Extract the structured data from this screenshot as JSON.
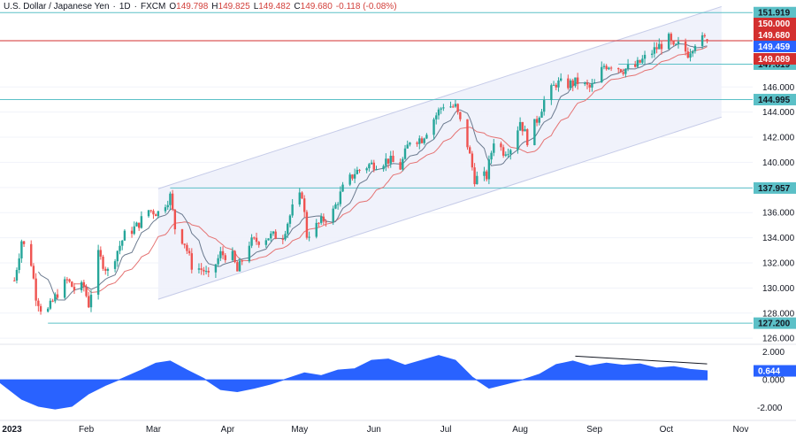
{
  "header": {
    "symbol": "U.S. Dollar / Japanese Yen",
    "interval": "1D",
    "exchange": "FXCM",
    "o_label": "O",
    "o_value": "149.798",
    "h_label": "H",
    "h_value": "149.825",
    "l_label": "L",
    "l_value": "149.482",
    "c_label": "C",
    "c_value": "149.680",
    "change": "-0.118 (-0.08%)"
  },
  "colors": {
    "up": "#26a69a",
    "down": "#ef5350",
    "ma_fast": "#6b7a8f",
    "ma_slow": "#e57373",
    "level": "#5bc0c7",
    "resistance": "#d32f2f",
    "oscillator": "#2962ff",
    "price_badge": "#d32f2f",
    "ma_badge": "#2962ff",
    "channel_fill": "#eef1fb"
  },
  "chart_data": [
    {
      "type": "candlestick",
      "title": "U.S. Dollar / Japanese Yen, 1D, FXCM",
      "x_ticks": [
        "2023",
        "Feb",
        "Mar",
        "Apr",
        "May",
        "Jun",
        "Jul",
        "Aug",
        "Sep",
        "Oct",
        "Nov"
      ],
      "y_ticks": [
        "126.000",
        "128.000",
        "130.000",
        "132.000",
        "134.000",
        "136.000",
        "138.000",
        "140.000",
        "142.000",
        "144.000",
        "146.000"
      ],
      "ylim": [
        125.8,
        152.5
      ],
      "x_range": [
        "2022-12-27",
        "2023-11-06"
      ],
      "horizontal_levels": [
        {
          "value": 151.919,
          "label": "151.919",
          "color": "#5bc0c7",
          "start": "2022-12-27"
        },
        {
          "value": 149.68,
          "label": "149.680",
          "color": "#d32f2f",
          "start": "2022-12-27"
        },
        {
          "value": 147.819,
          "label": "147.819",
          "color": "#5bc0c7",
          "start": "2023-09-11"
        },
        {
          "value": 144.995,
          "label": "144.995",
          "color": "#5bc0c7",
          "start": "2022-12-27"
        },
        {
          "value": 137.957,
          "label": "137.957",
          "color": "#5bc0c7",
          "start": "2023-03-08"
        },
        {
          "value": 127.2,
          "label": "127.200",
          "color": "#5bc0c7",
          "start": "2023-01-16"
        }
      ],
      "axis_badges": [
        {
          "value": 150.0,
          "label": "150.000",
          "style": "red"
        },
        {
          "value": 149.68,
          "label": "149.680",
          "style": "red"
        },
        {
          "value": 149.459,
          "label": "149.459",
          "style": "blue"
        },
        {
          "value": 149.089,
          "label": "149.089",
          "style": "red"
        }
      ],
      "channel": {
        "lower": [
          {
            "date": "2023-03-03",
            "value": 129.1
          },
          {
            "date": "2023-10-24",
            "value": 143.6
          }
        ],
        "upper": [
          {
            "date": "2023-03-03",
            "value": 137.9
          },
          {
            "date": "2023-10-24",
            "value": 152.4
          }
        ]
      },
      "close_path": [
        [
          "2023-01-02",
          130.6
        ],
        [
          "2023-01-05",
          133.8
        ],
        [
          "2023-01-09",
          132.0
        ],
        [
          "2023-01-11",
          129.4
        ],
        [
          "2023-01-13",
          128.4
        ],
        [
          "2023-01-16",
          128.2
        ],
        [
          "2023-01-18",
          128.9
        ],
        [
          "2023-01-20",
          129.6
        ],
        [
          "2023-01-24",
          130.6
        ],
        [
          "2023-01-27",
          129.9
        ],
        [
          "2023-01-31",
          130.1
        ],
        [
          "2023-02-02",
          128.7
        ],
        [
          "2023-02-06",
          132.6
        ],
        [
          "2023-02-10",
          131.3
        ],
        [
          "2023-02-14",
          133.0
        ],
        [
          "2023-02-17",
          134.2
        ],
        [
          "2023-02-22",
          134.9
        ],
        [
          "2023-02-27",
          136.2
        ],
        [
          "2023-03-03",
          136.0
        ],
        [
          "2023-03-08",
          137.3
        ],
        [
          "2023-03-10",
          134.8
        ],
        [
          "2023-03-14",
          133.6
        ],
        [
          "2023-03-17",
          131.8
        ],
        [
          "2023-03-22",
          131.4
        ],
        [
          "2023-03-24",
          130.8
        ],
        [
          "2023-03-29",
          132.7
        ],
        [
          "2023-04-03",
          132.5
        ],
        [
          "2023-04-05",
          131.3
        ],
        [
          "2023-04-10",
          133.6
        ],
        [
          "2023-04-14",
          133.8
        ],
        [
          "2023-04-18",
          134.1
        ],
        [
          "2023-04-24",
          134.2
        ],
        [
          "2023-04-28",
          136.3
        ],
        [
          "2023-05-02",
          137.5
        ],
        [
          "2023-05-04",
          134.2
        ],
        [
          "2023-05-09",
          135.1
        ],
        [
          "2023-05-15",
          136.1
        ],
        [
          "2023-05-19",
          137.9
        ],
        [
          "2023-05-24",
          139.2
        ],
        [
          "2023-05-30",
          139.8
        ],
        [
          "2023-06-02",
          139.9
        ],
        [
          "2023-06-07",
          140.2
        ],
        [
          "2023-06-12",
          139.6
        ],
        [
          "2023-06-16",
          141.8
        ],
        [
          "2023-06-21",
          141.9
        ],
        [
          "2023-06-26",
          143.5
        ],
        [
          "2023-06-30",
          144.6
        ],
        [
          "2023-07-05",
          144.4
        ],
        [
          "2023-07-10",
          141.4
        ],
        [
          "2023-07-13",
          138.7
        ],
        [
          "2023-07-18",
          138.9
        ],
        [
          "2023-07-21",
          141.8
        ],
        [
          "2023-07-25",
          140.9
        ],
        [
          "2023-07-28",
          141.2
        ],
        [
          "2023-08-01",
          143.3
        ],
        [
          "2023-08-04",
          141.8
        ],
        [
          "2023-08-08",
          143.4
        ],
        [
          "2023-08-11",
          144.9
        ],
        [
          "2023-08-16",
          146.3
        ],
        [
          "2023-08-21",
          146.2
        ],
        [
          "2023-08-25",
          146.4
        ],
        [
          "2023-08-30",
          145.9
        ],
        [
          "2023-09-01",
          146.2
        ],
        [
          "2023-09-05",
          147.7
        ],
        [
          "2023-09-08",
          147.8
        ],
        [
          "2023-09-13",
          147.4
        ],
        [
          "2023-09-18",
          147.6
        ],
        [
          "2023-09-22",
          148.3
        ],
        [
          "2023-09-27",
          149.1
        ],
        [
          "2023-10-02",
          149.8
        ],
        [
          "2023-10-04",
          149.0
        ],
        [
          "2023-10-06",
          149.3
        ],
        [
          "2023-10-10",
          148.7
        ],
        [
          "2023-10-13",
          149.6
        ],
        [
          "2023-10-17",
          149.8
        ],
        [
          "2023-10-18",
          149.68
        ]
      ]
    },
    {
      "type": "area",
      "title": "",
      "y_ticks": [
        "2.000",
        "0.000",
        "-2.000"
      ],
      "ylim": [
        -2.6,
        2.3
      ],
      "last_value": 0.644,
      "last_label": "0.644",
      "points": [
        [
          "2022-12-27",
          -0.2
        ],
        [
          "2023-01-05",
          -1.4
        ],
        [
          "2023-01-12",
          -1.9
        ],
        [
          "2023-01-19",
          -2.1
        ],
        [
          "2023-01-26",
          -1.9
        ],
        [
          "2023-02-02",
          -1.0
        ],
        [
          "2023-02-09",
          -0.4
        ],
        [
          "2023-02-16",
          0.1
        ],
        [
          "2023-02-24",
          0.7
        ],
        [
          "2023-03-02",
          1.2
        ],
        [
          "2023-03-08",
          1.35
        ],
        [
          "2023-03-15",
          0.7
        ],
        [
          "2023-03-22",
          0.1
        ],
        [
          "2023-03-29",
          -0.7
        ],
        [
          "2023-04-05",
          -0.85
        ],
        [
          "2023-04-12",
          -0.6
        ],
        [
          "2023-04-19",
          -0.3
        ],
        [
          "2023-04-26",
          0.1
        ],
        [
          "2023-05-03",
          0.5
        ],
        [
          "2023-05-10",
          0.3
        ],
        [
          "2023-05-17",
          0.7
        ],
        [
          "2023-05-24",
          0.8
        ],
        [
          "2023-05-31",
          1.4
        ],
        [
          "2023-06-07",
          1.5
        ],
        [
          "2023-06-14",
          1.05
        ],
        [
          "2023-06-21",
          1.4
        ],
        [
          "2023-06-28",
          1.75
        ],
        [
          "2023-07-05",
          1.4
        ],
        [
          "2023-07-12",
          0.2
        ],
        [
          "2023-07-19",
          -0.6
        ],
        [
          "2023-07-26",
          -0.3
        ],
        [
          "2023-08-02",
          0.0
        ],
        [
          "2023-08-09",
          0.4
        ],
        [
          "2023-08-16",
          1.1
        ],
        [
          "2023-08-23",
          1.35
        ],
        [
          "2023-08-30",
          1.0
        ],
        [
          "2023-09-06",
          1.2
        ],
        [
          "2023-09-13",
          1.05
        ],
        [
          "2023-09-20",
          1.15
        ],
        [
          "2023-09-27",
          0.85
        ],
        [
          "2023-10-04",
          0.95
        ],
        [
          "2023-10-11",
          0.75
        ],
        [
          "2023-10-18",
          0.644
        ]
      ],
      "divergence_line": [
        {
          "date": "2023-08-24",
          "value": 1.7
        },
        {
          "date": "2023-10-18",
          "value": 1.15
        }
      ]
    }
  ]
}
